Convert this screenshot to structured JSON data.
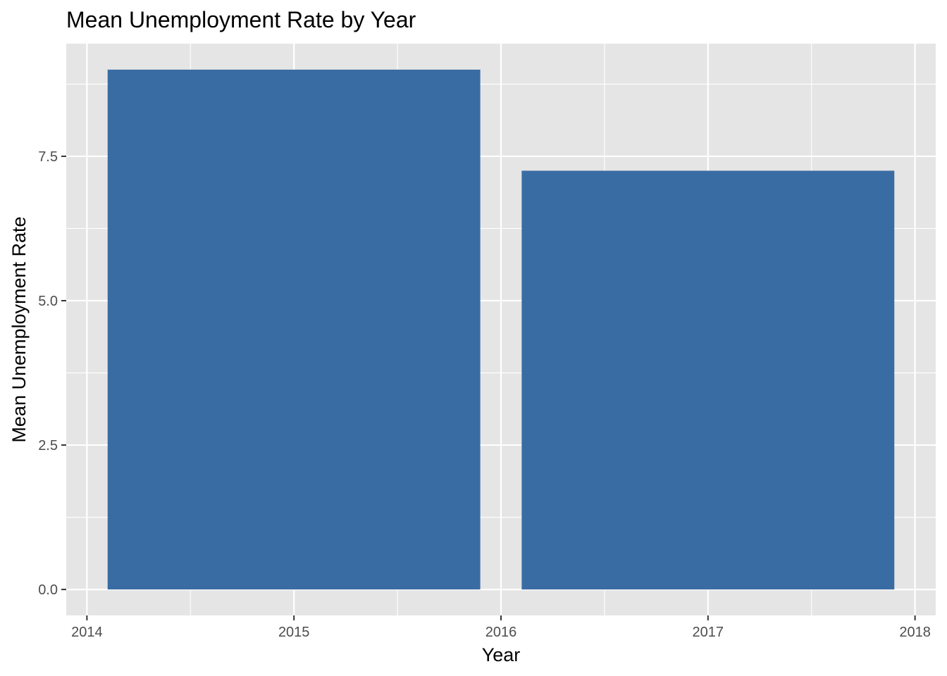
{
  "chart_data": {
    "type": "bar",
    "title": "Mean Unemployment Rate by Year",
    "xlabel": "Year",
    "ylabel": "Mean Unemployment Rate",
    "x_ticks": [
      "2014",
      "2015",
      "2016",
      "2017",
      "2018"
    ],
    "y_ticks": [
      "0.0",
      "2.5",
      "5.0",
      "7.5"
    ],
    "xlim": [
      2013.9,
      2018.1
    ],
    "ylim": [
      -0.45,
      9.45
    ],
    "bar_width": 1.8,
    "grid": true,
    "legend": "none",
    "bar_color": "#3A6CA4",
    "panel_color": "#E5E5E5",
    "grid_color": "#FFFFFF",
    "points": [
      {
        "x": 2015,
        "y": 9.0
      },
      {
        "x": 2017,
        "y": 7.25
      }
    ]
  }
}
